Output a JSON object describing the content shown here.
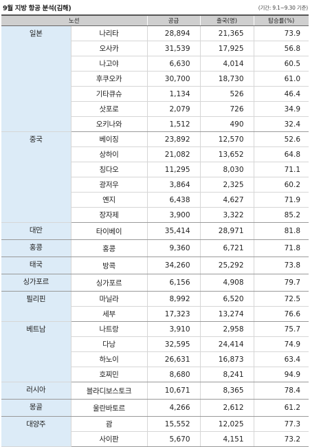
{
  "title": "9월 지방 항공 분석(김해)",
  "period": "(기간: 9.1~9.30 기준)",
  "headers": [
    "노선",
    "",
    "공급",
    "출국(명)",
    "탑승률(%)"
  ],
  "groups": [
    {
      "region": "일본",
      "rows": [
        {
          "city": "나리타",
          "supply": "28,894",
          "passengers": "21,365",
          "rate": "73.9"
        },
        {
          "city": "오사카",
          "supply": "31,539",
          "passengers": "17,925",
          "rate": "56.8"
        },
        {
          "city": "나고야",
          "supply": "6,630",
          "passengers": "4,014",
          "rate": "60.5"
        },
        {
          "city": "후쿠오카",
          "supply": "30,700",
          "passengers": "18,730",
          "rate": "61.0"
        },
        {
          "city": "기타큐슈",
          "supply": "1,134",
          "passengers": "526",
          "rate": "46.4"
        },
        {
          "city": "삿포로",
          "supply": "2,079",
          "passengers": "726",
          "rate": "34.9"
        },
        {
          "city": "오키나와",
          "supply": "1,512",
          "passengers": "490",
          "rate": "32.4"
        }
      ]
    },
    {
      "region": "중국",
      "rows": [
        {
          "city": "베이징",
          "supply": "23,892",
          "passengers": "12,570",
          "rate": "52.6"
        },
        {
          "city": "상하이",
          "supply": "21,082",
          "passengers": "13,652",
          "rate": "64.8"
        },
        {
          "city": "칭다오",
          "supply": "11,295",
          "passengers": "8,030",
          "rate": "71.1"
        },
        {
          "city": "광저우",
          "supply": "3,864",
          "passengers": "2,325",
          "rate": "60.2"
        },
        {
          "city": "옌지",
          "supply": "6,438",
          "passengers": "4,627",
          "rate": "71.9"
        },
        {
          "city": "장자제",
          "supply": "3,900",
          "passengers": "3,322",
          "rate": "85.2"
        }
      ]
    },
    {
      "region": "대만",
      "rows": [
        {
          "city": "타이베이",
          "supply": "35,414",
          "passengers": "28,971",
          "rate": "81.8"
        }
      ]
    },
    {
      "region": "홍콩",
      "rows": [
        {
          "city": "홍콩",
          "supply": "9,360",
          "passengers": "6,721",
          "rate": "71.8"
        }
      ]
    },
    {
      "region": "태국",
      "rows": [
        {
          "city": "방콕",
          "supply": "34,260",
          "passengers": "25,292",
          "rate": "73.8"
        }
      ]
    },
    {
      "region": "싱가포르",
      "rows": [
        {
          "city": "싱가포르",
          "supply": "6,156",
          "passengers": "4,908",
          "rate": "79.7"
        }
      ]
    },
    {
      "region": "필리핀",
      "rows": [
        {
          "city": "마닐라",
          "supply": "8,992",
          "passengers": "6,520",
          "rate": "72.5"
        },
        {
          "city": "세부",
          "supply": "17,323",
          "passengers": "13,274",
          "rate": "76.6"
        }
      ]
    },
    {
      "region": "베트남",
      "rows": [
        {
          "city": "나트랑",
          "supply": "3,910",
          "passengers": "2,958",
          "rate": "75.7"
        },
        {
          "city": "다낭",
          "supply": "32,595",
          "passengers": "24,414",
          "rate": "74.9"
        },
        {
          "city": "하노이",
          "supply": "26,631",
          "passengers": "16,873",
          "rate": "63.4"
        },
        {
          "city": "호찌민",
          "supply": "8,680",
          "passengers": "8,241",
          "rate": "94.9"
        }
      ]
    },
    {
      "region": "러시아",
      "rows": [
        {
          "city": "블라디보스토크",
          "supply": "10,671",
          "passengers": "8,365",
          "rate": "78.4"
        }
      ]
    },
    {
      "region": "몽골",
      "rows": [
        {
          "city": "울란바토르",
          "supply": "4,266",
          "passengers": "2,612",
          "rate": "61.2"
        }
      ]
    },
    {
      "region": "대양주",
      "rows": [
        {
          "city": "괌",
          "supply": "15,552",
          "passengers": "12,025",
          "rate": "77.3"
        },
        {
          "city": "사이판",
          "supply": "5,670",
          "passengers": "4,151",
          "rate": "73.2"
        }
      ]
    }
  ]
}
